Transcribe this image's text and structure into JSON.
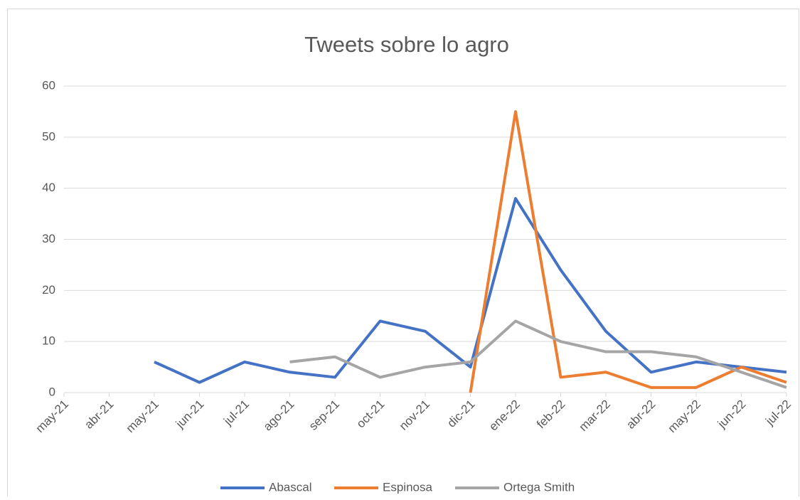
{
  "chart_data": {
    "type": "line",
    "title": "Tweets sobre lo agro",
    "categories": [
      "may-21",
      "abr-21",
      "may-21",
      "jun-21",
      "jul-21",
      "ago-21",
      "sep-21",
      "oct-21",
      "nov-21",
      "dic-21",
      "ene-22",
      "feb-22",
      "mar-22",
      "abr-22",
      "may-22",
      "jun-22",
      "jul-22"
    ],
    "series": [
      {
        "name": "Abascal",
        "color": "#4472c4",
        "values": [
          null,
          null,
          6,
          2,
          6,
          4,
          3,
          14,
          12,
          5,
          38,
          24,
          12,
          4,
          6,
          5,
          4
        ]
      },
      {
        "name": "Espinosa",
        "color": "#ed7d31",
        "values": [
          null,
          null,
          null,
          null,
          null,
          null,
          null,
          null,
          null,
          0,
          55,
          3,
          4,
          1,
          1,
          5,
          2
        ]
      },
      {
        "name": "Ortega Smith",
        "color": "#a5a5a5",
        "values": [
          null,
          null,
          null,
          null,
          null,
          6,
          7,
          3,
          5,
          6,
          14,
          10,
          8,
          8,
          7,
          4,
          1
        ]
      }
    ],
    "ylim": [
      0,
      60
    ],
    "yticks": [
      0,
      10,
      20,
      30,
      40,
      50,
      60
    ],
    "grid": true,
    "legend": "bottom"
  }
}
